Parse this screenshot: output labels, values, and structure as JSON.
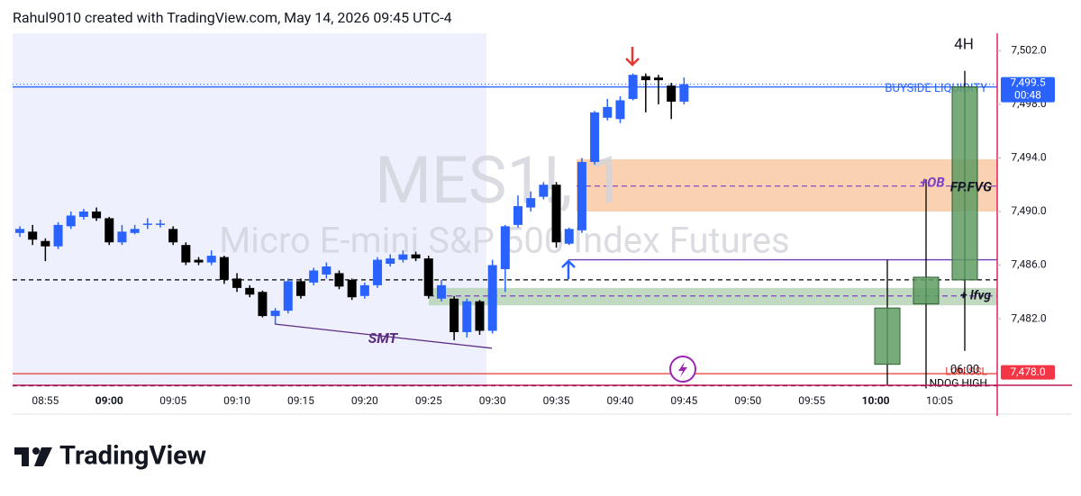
{
  "chart_data": {
    "type": "candlestick",
    "title": "Rahul9010 created with TradingView.com, May 14, 2026 09:45 UTC-4",
    "symbol": "MES1!, 1",
    "description": "Micro E-mini S&P 500 Index Futures",
    "brand": "TradingView",
    "up_color": "#2962ff",
    "down_color": "#000000",
    "categories": [
      null,
      null,
      "08:55",
      null,
      null,
      null,
      null,
      "09:00",
      null,
      null,
      null,
      null,
      "09:05",
      null,
      null,
      null,
      null,
      "09:10",
      null,
      null,
      null,
      null,
      "09:15",
      null,
      null,
      null,
      null,
      "09:20",
      null,
      null,
      null,
      null,
      "09:25",
      null,
      null,
      null,
      null,
      "09:30",
      null,
      null,
      null,
      null,
      "09:35",
      null,
      null,
      null,
      null,
      "09:40",
      null,
      null,
      null,
      null,
      "09:45",
      null,
      null,
      null,
      null,
      "09:50",
      null,
      null,
      null,
      null,
      "09:55",
      null,
      null,
      null,
      null,
      "10:00",
      null,
      null,
      null,
      null,
      "10:05",
      null,
      null
    ],
    "open": [
      7488.4,
      7488.5,
      7487.8,
      7487.4,
      7488.9,
      7489.6,
      7490.0,
      7489.5,
      7487.7,
      7488.4,
      7489.0,
      7489.0,
      7488.7,
      7487.5,
      7486.4,
      7486.2,
      7486.6,
      7485.0,
      7484.3,
      7484.0,
      7482.2,
      7482.6,
      7484.8,
      7484.7,
      7485.3,
      7485.4,
      7484.9,
      7483.7,
      7484.5,
      7486.1,
      7486.4,
      7486.8,
      7486.5,
      7483.5,
      7483.5,
      7481.0,
      7483.3,
      7481.1,
      7485.7,
      7489.0,
      7490.3,
      7491.1,
      7492.0,
      7487.6,
      7488.6,
      7493.7,
      7497.0,
      7496.9,
      7498.4,
      7500.1,
      7500.0,
      7499.4,
      7498.2,
      null,
      null,
      null,
      null,
      null,
      null,
      null,
      null,
      null,
      null,
      null,
      null,
      null,
      null,
      null,
      null,
      null,
      null,
      null,
      null,
      null,
      null
    ],
    "high": [
      7488.9,
      7489.0,
      7488.0,
      7489.2,
      7490.0,
      7490.2,
      7490.3,
      7489.6,
      7489.0,
      7489.0,
      7489.5,
      7489.4,
      7488.9,
      7487.7,
      7486.6,
      7487.1,
      7486.7,
      7485.4,
      7484.5,
      7484.1,
      7482.8,
      7485.0,
      7485.0,
      7485.8,
      7486.2,
      7485.6,
      7485.0,
      7484.7,
      7486.6,
      7486.8,
      7487.1,
      7487.0,
      7486.7,
      7484.9,
      7483.7,
      7483.5,
      7483.4,
      7486.4,
      7489.0,
      7491.2,
      7491.5,
      7492.2,
      7492.2,
      7488.8,
      7494.0,
      7497.5,
      7498.4,
      7498.6,
      7500.3,
      7500.3,
      7500.2,
      7499.6,
      7500.0,
      null,
      null,
      null,
      null,
      null,
      null,
      null,
      null,
      null,
      null,
      null,
      null,
      null,
      null,
      null,
      null,
      null,
      null,
      null,
      null,
      null,
      null
    ],
    "low": [
      7488.1,
      7487.5,
      7486.3,
      7487.2,
      7488.7,
      7489.4,
      7489.3,
      7487.5,
      7487.5,
      7488.3,
      7488.7,
      7488.8,
      7487.5,
      7486.0,
      7486.0,
      7486.0,
      7484.6,
      7484.0,
      7483.6,
      7482.1,
      7481.6,
      7482.4,
      7483.5,
      7484.5,
      7485.0,
      7484.2,
      7483.4,
      7483.5,
      7484.3,
      7485.9,
      7486.2,
      7486.3,
      7483.5,
      7483.3,
      7480.4,
      7480.6,
      7480.8,
      7480.9,
      7484.0,
      7488.8,
      7490.0,
      7490.9,
      7487.3,
      7487.5,
      7488.4,
      7493.5,
      7496.8,
      7496.6,
      7498.3,
      7497.4,
      7498.0,
      7496.9,
      7498.0,
      null,
      null,
      null,
      null,
      null,
      null,
      null,
      null,
      null,
      null,
      null,
      null,
      null,
      null,
      null,
      null,
      null,
      null,
      null,
      null,
      null,
      null
    ],
    "close": [
      7488.7,
      7487.9,
      7487.4,
      7489.0,
      7489.7,
      7490.0,
      7489.5,
      7487.7,
      7488.5,
      7488.7,
      7489.1,
      7489.1,
      7487.7,
      7486.2,
      7486.2,
      7486.7,
      7484.9,
      7484.3,
      7483.8,
      7482.2,
      7482.6,
      7484.8,
      7483.7,
      7485.6,
      7485.9,
      7484.4,
      7483.6,
      7484.5,
      7486.4,
      7486.5,
      7486.8,
      7486.5,
      7483.7,
      7484.5,
      7481.0,
      7483.3,
      7481.1,
      7486.0,
      7488.9,
      7490.4,
      7491.0,
      7492.0,
      7487.7,
      7488.7,
      7493.7,
      7497.4,
      7497.8,
      7498.3,
      7500.2,
      7499.8,
      7499.8,
      7498.2,
      7499.5,
      null,
      null,
      null,
      null,
      null,
      null,
      null,
      null,
      null,
      null,
      null,
      null,
      null,
      null,
      null,
      null,
      null,
      null,
      null,
      null,
      null,
      null
    ],
    "ylim": [
      7476.9,
      7503.3
    ],
    "yticks": [
      {
        "value": 7482,
        "label": "7,482.0"
      },
      {
        "value": 7486,
        "label": "7,486.0"
      },
      {
        "value": 7490,
        "label": "7,490.0"
      },
      {
        "value": 7494,
        "label": "7,494.0"
      },
      {
        "value": 7498,
        "label": "7,498.0"
      },
      {
        "value": 7502,
        "label": "7,502.0"
      }
    ],
    "htf": {
      "label": "4H",
      "color": "#5f9c63",
      "candles": [
        {
          "open": 7478.6,
          "high": 7486.4,
          "low": 7477.0,
          "close": 7482.8
        },
        {
          "open": 7483.1,
          "high": 7492.4,
          "low": 7476.8,
          "close": 7485.1
        },
        {
          "open": 7484.9,
          "high": 7500.5,
          "low": 7479.6,
          "close": 7499.3
        }
      ]
    },
    "zones": [
      {
        "label": "FP.FVG",
        "sublabel": "+OB",
        "top": 7493.9,
        "bottom": 7490.0,
        "mid": 7491.9,
        "color": "#f9c9a3"
      },
      {
        "label": "+ lfvg",
        "top": 7484.3,
        "bottom": 7483.0,
        "mid": 7483.7,
        "color": "#b9d3b7"
      }
    ],
    "levels": [
      {
        "label": "BUYSIDE LIQUIDITY",
        "price": 7499.3,
        "color": "#2962ff"
      },
      {
        "price": 7486.4,
        "color": "#6a3fb5"
      },
      {
        "price": 7484.9,
        "color": "#000000",
        "dashed": true
      },
      {
        "label": "LON.SSL",
        "price": 7477.9,
        "color": "#e53935"
      },
      {
        "label": "NDOG HIGH",
        "price": 7477.0,
        "color": "#000000",
        "dashed": true
      }
    ],
    "session_time": "06:00",
    "smt": {
      "label": "SMT",
      "from": 7481.6,
      "to": 7479.8
    },
    "last_price": {
      "value": 7499.5,
      "label": "7,499.5",
      "countdown": "00:48"
    },
    "alert_price": {
      "value": 7478.0,
      "label": "7,478.0"
    }
  }
}
